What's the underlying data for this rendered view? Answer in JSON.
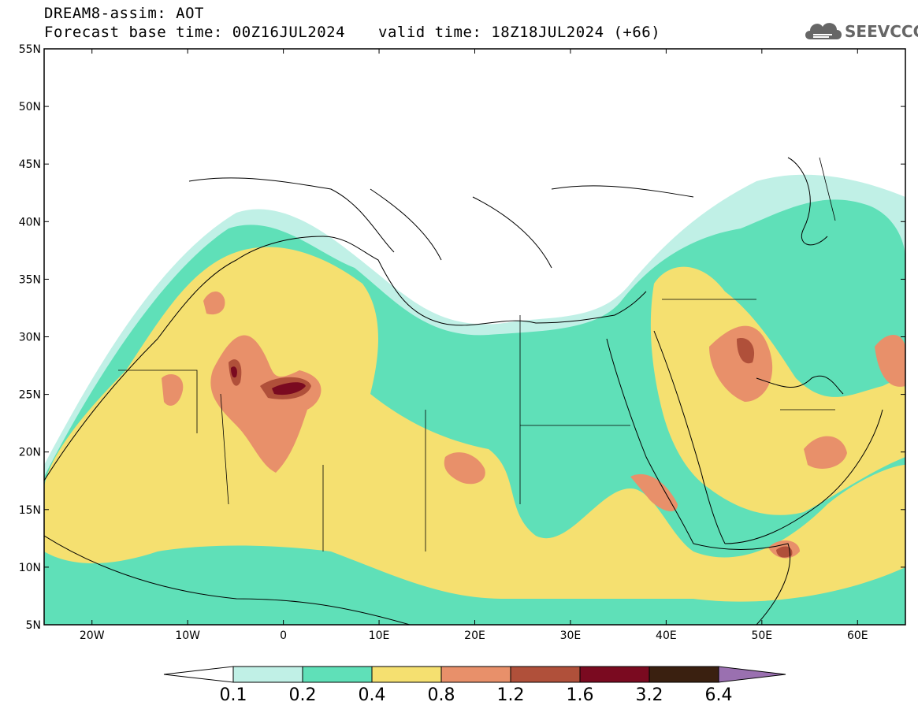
{
  "header": {
    "title": "DREAM8-assim: AOT",
    "base_time": "Forecast base time: 00Z16JUL2024",
    "valid_time": "valid time: 18Z18JUL2024 (+66)"
  },
  "logo": {
    "text": "SEEVCCC",
    "icon": "cloud-logo-icon"
  },
  "map": {
    "lat_range": [
      5,
      55
    ],
    "lon_range": [
      -25,
      65
    ],
    "lat_labels": [
      "55N",
      "50N",
      "45N",
      "40N",
      "35N",
      "30N",
      "25N",
      "20N",
      "15N",
      "10N",
      "5N"
    ],
    "lon_labels": [
      "20W",
      "10W",
      "0",
      "10E",
      "20E",
      "30E",
      "40E",
      "50E",
      "60E"
    ],
    "colors": {
      "c1": "#c0f0e6",
      "c2": "#5fe0b8",
      "c3": "#f5e070",
      "c4": "#e8906a",
      "c5": "#b0503a",
      "c6": "#7a0a20",
      "c7": "#3a2010",
      "c8": "#9a70b0"
    }
  },
  "colorbar": {
    "labels": [
      "0.1",
      "0.2",
      "0.4",
      "0.8",
      "1.2",
      "1.6",
      "3.2",
      "6.4"
    ]
  }
}
